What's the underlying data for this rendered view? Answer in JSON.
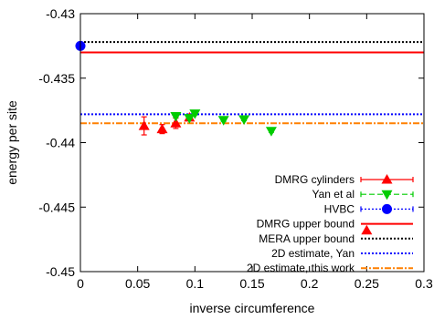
{
  "chart_data": {
    "type": "scatter",
    "xlabel": "inverse circumference",
    "ylabel": "energy per site",
    "xlim": [
      0,
      0.3
    ],
    "ylim": [
      -0.45,
      -0.43
    ],
    "xticks": [
      {
        "v": 0,
        "label": "0"
      },
      {
        "v": 0.05,
        "label": "0.05"
      },
      {
        "v": 0.1,
        "label": "0.1"
      },
      {
        "v": 0.15,
        "label": "0.15"
      },
      {
        "v": 0.2,
        "label": "0.2"
      },
      {
        "v": 0.25,
        "label": "0.25"
      },
      {
        "v": 0.3,
        "label": "0.3"
      }
    ],
    "yticks": [
      {
        "v": -0.43,
        "label": "-0.43"
      },
      {
        "v": -0.435,
        "label": "-0.435"
      },
      {
        "v": -0.44,
        "label": "-0.44"
      },
      {
        "v": -0.445,
        "label": "-0.445"
      },
      {
        "v": -0.45,
        "label": "-0.45"
      }
    ],
    "legend_position": "bottom-right",
    "series": [
      {
        "name": "DMRG cylinders",
        "kind": "points",
        "marker": "triangle-up",
        "color": "#ff0000",
        "line_style": "solid",
        "points": [
          {
            "x": 0.0556,
            "y": -0.4387,
            "err": 0.0007
          },
          {
            "x": 0.0714,
            "y": -0.43895,
            "err": 0.00035
          },
          {
            "x": 0.0833,
            "y": -0.4385,
            "err": 0.0004
          },
          {
            "x": 0.0952,
            "y": -0.43805,
            "err": 0.0002
          },
          {
            "x": 0.25,
            "y": -0.4468,
            "err": 0
          }
        ]
      },
      {
        "name": "Yan et al",
        "kind": "points",
        "marker": "triangle-down",
        "color": "#00cc00",
        "line_style": "dashed",
        "points": [
          {
            "x": 0.0833,
            "y": -0.43795,
            "err": 0.0001
          },
          {
            "x": 0.0952,
            "y": -0.4381,
            "err": 0.0001
          },
          {
            "x": 0.1,
            "y": -0.43775,
            "err": 0.0001
          },
          {
            "x": 0.125,
            "y": -0.43825,
            "err": 0.0001
          },
          {
            "x": 0.1429,
            "y": -0.4382,
            "err": 0.0001
          },
          {
            "x": 0.1667,
            "y": -0.4391,
            "err": 0.0001
          }
        ]
      },
      {
        "name": "HVBC",
        "kind": "points",
        "marker": "circle",
        "color": "#0000ff",
        "line_style": "dotted",
        "points": [
          {
            "x": 0,
            "y": -0.4325,
            "err": 0
          }
        ]
      },
      {
        "name": "DMRG upper bound",
        "kind": "hline",
        "y": -0.433,
        "color": "#ff0000",
        "line_style": "solid"
      },
      {
        "name": "MERA upper bound",
        "kind": "hline",
        "y": -0.4322,
        "color": "#000000",
        "line_style": "dotted"
      },
      {
        "name": "2D estimate, Yan",
        "kind": "hline",
        "y": -0.4378,
        "color": "#0000ff",
        "line_style": "dotted"
      },
      {
        "name": "2D estimate, this work",
        "kind": "hline",
        "y": -0.4385,
        "color": "#ff8000",
        "line_style": "dashdot"
      }
    ]
  }
}
